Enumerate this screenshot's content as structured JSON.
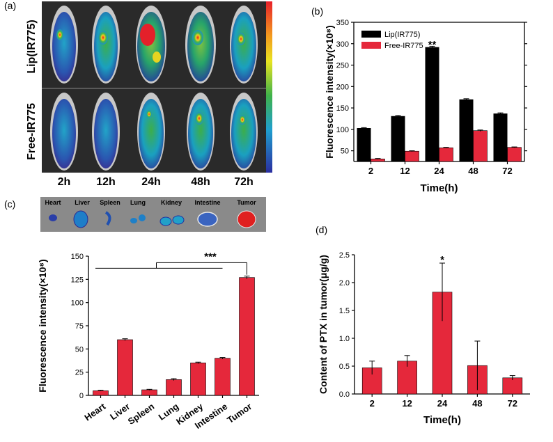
{
  "panels": {
    "a": "(a)",
    "b": "(b)",
    "c": "(c)",
    "d": "(d)"
  },
  "imaging": {
    "row_labels": [
      "Lip(IR775)",
      "Free-IR775"
    ],
    "time_labels": [
      "2h",
      "12h",
      "24h",
      "48h",
      "72h"
    ]
  },
  "organs": {
    "labels": [
      "Heart",
      "Liver",
      "Spleen",
      "Lung",
      "Kidney",
      "Intestine",
      "Tumor"
    ]
  },
  "chart_data": [
    {
      "id": "b",
      "type": "bar",
      "title": "",
      "xlabel": "Time(h)",
      "ylabel": "Fluorescence intensity(×10⁸)",
      "categories": [
        "2",
        "12",
        "24",
        "48",
        "72"
      ],
      "ylim": [
        25,
        350
      ],
      "yticks": [
        50,
        100,
        150,
        200,
        250,
        300,
        350
      ],
      "series": [
        {
          "name": "Lip(IR775)",
          "color": "#000000",
          "values": [
            103,
            131,
            292,
            170,
            137
          ],
          "errors": [
            1,
            1.5,
            2,
            1.5,
            1.5
          ]
        },
        {
          "name": "Free-IR775",
          "color": "#e5283b",
          "values": [
            31,
            49,
            57,
            97,
            58
          ],
          "errors": [
            1,
            1,
            1,
            1.5,
            1
          ]
        }
      ],
      "annotation": "**",
      "legend": "top-left"
    },
    {
      "id": "c",
      "type": "bar",
      "title": "",
      "xlabel": "",
      "ylabel": "Fluorescence intensity(×10⁸)",
      "categories": [
        "Heart",
        "Liver",
        "Spleen",
        "Lung",
        "Kidney",
        "Intestine",
        "Tumor"
      ],
      "ylim": [
        0,
        150
      ],
      "yticks": [
        0,
        25,
        50,
        75,
        100,
        125,
        150
      ],
      "series": [
        {
          "name": "Fluorescence",
          "color": "#e5283b",
          "values": [
            5,
            60,
            6,
            17,
            35,
            40,
            127
          ],
          "errors": [
            0.5,
            1,
            0.5,
            1,
            0.8,
            0.8,
            1.5
          ]
        }
      ],
      "annotation": "***"
    },
    {
      "id": "d",
      "type": "bar",
      "title": "",
      "xlabel": "Time(h)",
      "ylabel": "Content of PTX in tumor(μg/g)",
      "categories": [
        "2",
        "12",
        "24",
        "48",
        "72"
      ],
      "ylim": [
        0,
        2.5
      ],
      "yticks": [
        "0.0",
        "0.5",
        "1.0",
        "1.5",
        "2.0",
        "2.5"
      ],
      "series": [
        {
          "name": "PTX",
          "color": "#e5283b",
          "values": [
            0.47,
            0.59,
            1.83,
            0.51,
            0.29
          ],
          "errors": [
            0.12,
            0.1,
            0.52,
            0.44,
            0.04
          ]
        }
      ],
      "annotation": "*"
    }
  ]
}
